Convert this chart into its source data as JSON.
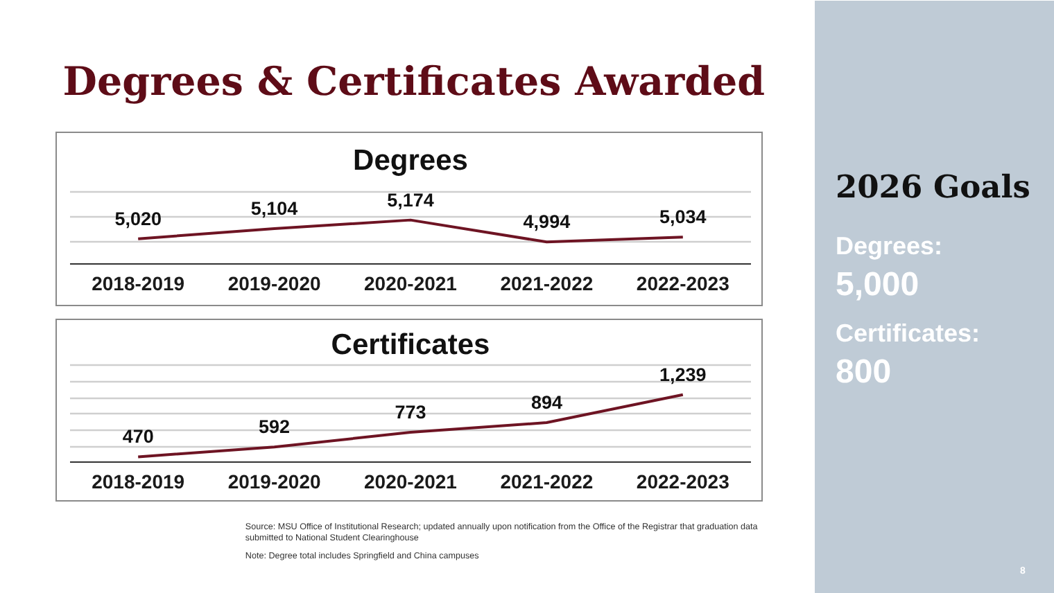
{
  "chart_data": [
    {
      "type": "other",
      "title": "Degrees & Certificates Awarded"
    },
    {
      "type": "line",
      "title": "Degrees",
      "categories": [
        "2018-2019",
        "2019-2020",
        "2020-2021",
        "2021-2022",
        "2022-2023"
      ],
      "values": [
        5020,
        5104,
        5174,
        4994,
        5034
      ],
      "value_labels": [
        "5,020",
        "5,104",
        "5,174",
        "4,994",
        "5,034"
      ],
      "color": "#6e1423",
      "grid": "y",
      "tick_labels": "x"
    },
    {
      "type": "line",
      "title": "Certificates",
      "categories": [
        "2018-2019",
        "2019-2020",
        "2020-2021",
        "2021-2022",
        "2022-2023"
      ],
      "values": [
        470,
        592,
        773,
        894,
        1239
      ],
      "value_labels": [
        "470",
        "592",
        "773",
        "894",
        "1,239"
      ],
      "color": "#6e1423",
      "grid": "y",
      "tick_labels": "x"
    },
    {
      "type": "other",
      "title": "2026 Goals",
      "annotations": [
        "Degrees:",
        "5,000",
        "Certificates:",
        "800",
        "8"
      ]
    },
    {
      "type": "other",
      "annotations": [
        "Source: MSU Office of Institutional Research; updated annually upon notification from the Office of the Registrar that graduation data submitted to National Student Clearinghouse",
        "Note: Degree total includes Springfield and China campuses"
      ]
    }
  ]
}
